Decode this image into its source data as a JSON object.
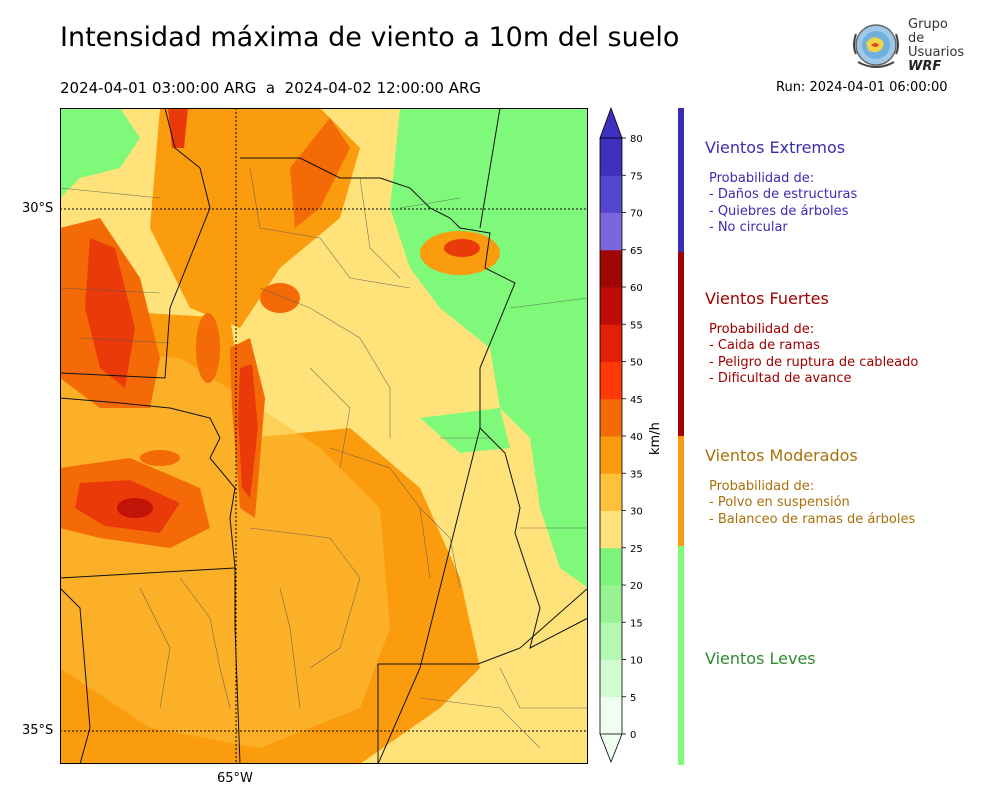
{
  "header": {
    "title": "Intensidad máxima de viento a 10m del suelo",
    "period": "2024-04-01 03:00:00 ARG  a  2024-04-02 12:00:00 ARG",
    "run": "Run: 2024-04-01 06:00:00"
  },
  "logo": {
    "line1": "Grupo de",
    "line2": "Usuarios",
    "line3": "WRF"
  },
  "map": {
    "lat_labels": [
      "30°S",
      "35°S"
    ],
    "lon_labels": [
      "65°W"
    ],
    "colors": {
      "green": "#7ef97a",
      "yellow": "#ffe37a",
      "light_orange": "#fdc13c",
      "orange": "#fa9c0e",
      "dark_orange": "#f46a07",
      "red": "#eb3a0a",
      "dark_red": "#c01408"
    }
  },
  "colorbar": {
    "unit": "km/h",
    "ticks": [
      "0",
      "5",
      "10",
      "15",
      "20",
      "25",
      "30",
      "35",
      "40",
      "45",
      "50",
      "55",
      "60",
      "65",
      "70",
      "75",
      "80"
    ],
    "colors": [
      "#effef0",
      "#d3fbd2",
      "#b5f8b1",
      "#98f492",
      "#7ef37a",
      "#ffe37a",
      "#fdc13c",
      "#fa9c0e",
      "#f46a07",
      "#ff3a08",
      "#e41f08",
      "#c00c06",
      "#9e0803",
      "#7b66e0",
      "#5447cf",
      "#3f2fbf"
    ]
  },
  "categories": [
    {
      "name": "Vientos Extremos",
      "color": "#3b2db0",
      "bar_color": "#3b2db0",
      "heading": "Probabilidad de:",
      "items": [
        "- Daños de estructuras",
        "- Quiebres de árboles",
        "- No circular"
      ]
    },
    {
      "name": "Vientos Fuertes",
      "color": "#a00000",
      "bar_color": "#a00000",
      "heading": "Probabilidad de:",
      "items": [
        "- Caida de ramas",
        "- Peligro de ruptura de cableado",
        "- Dificultad de avance"
      ]
    },
    {
      "name": "Vientos Moderados",
      "color": "#a8700a",
      "bar_color": "#fa9c0e",
      "heading": "Probabilidad de:",
      "items": [
        "- Polvo en suspensión",
        "- Balanceo de ramas de árboles"
      ]
    },
    {
      "name": "Vientos Leves",
      "color": "#2e8b2e",
      "bar_color": "#7ef97a"
    }
  ]
}
